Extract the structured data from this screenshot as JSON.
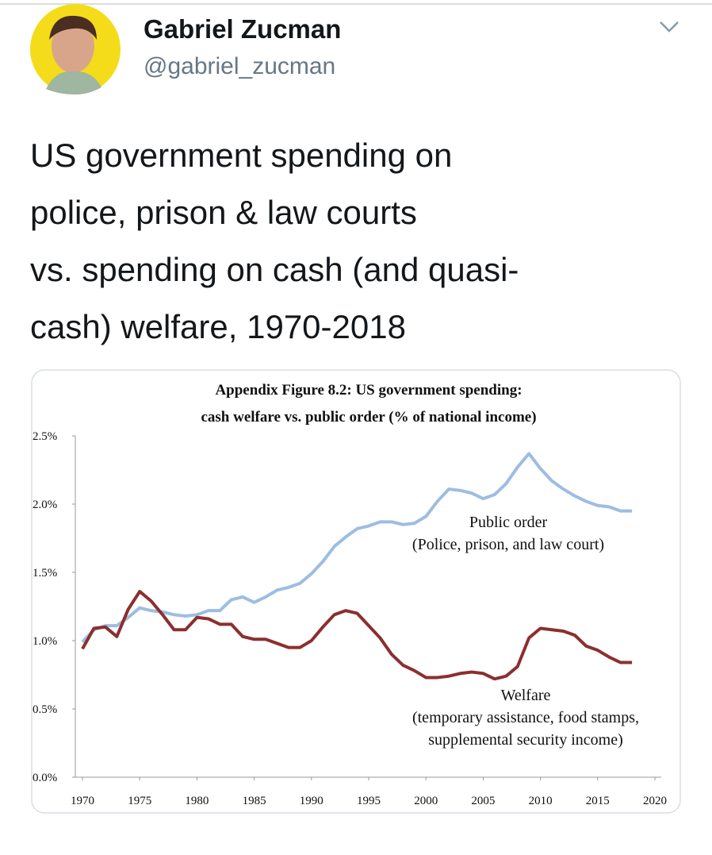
{
  "header": {
    "name": "Gabriel Zucman",
    "handle": "@gabriel_zucman"
  },
  "tweet": {
    "lines": [
      "US government spending on",
      "police, prison & law courts",
      "vs. spending on cash (and quasi-",
      "cash) welfare, 1970-2018"
    ]
  },
  "chart_data": {
    "type": "line",
    "title": [
      "Appendix Figure 8.2: US government spending:",
      "cash welfare vs. public order (% of national income)"
    ],
    "x": [
      1970,
      1971,
      1972,
      1973,
      1974,
      1975,
      1976,
      1977,
      1978,
      1979,
      1980,
      1981,
      1982,
      1983,
      1984,
      1985,
      1986,
      1987,
      1988,
      1989,
      1990,
      1991,
      1992,
      1993,
      1994,
      1995,
      1996,
      1997,
      1998,
      1999,
      2000,
      2001,
      2002,
      2003,
      2004,
      2005,
      2006,
      2007,
      2008,
      2009,
      2010,
      2011,
      2012,
      2013,
      2014,
      2015,
      2016,
      2017,
      2018
    ],
    "series": [
      {
        "name": "Public order",
        "color": "#9dbde2",
        "values": [
          0.99,
          1.08,
          1.11,
          1.11,
          1.17,
          1.24,
          1.22,
          1.21,
          1.19,
          1.18,
          1.19,
          1.22,
          1.22,
          1.3,
          1.32,
          1.28,
          1.32,
          1.37,
          1.39,
          1.42,
          1.49,
          1.58,
          1.69,
          1.76,
          1.82,
          1.84,
          1.87,
          1.87,
          1.85,
          1.86,
          1.91,
          2.02,
          2.11,
          2.1,
          2.08,
          2.04,
          2.07,
          2.15,
          2.27,
          2.37,
          2.26,
          2.17,
          2.11,
          2.06,
          2.02,
          1.99,
          1.98,
          1.95,
          1.95
        ]
      },
      {
        "name": "Welfare",
        "color": "#8c2f2f",
        "values": [
          0.94,
          1.09,
          1.1,
          1.03,
          1.23,
          1.36,
          1.29,
          1.19,
          1.08,
          1.08,
          1.17,
          1.16,
          1.12,
          1.12,
          1.03,
          1.01,
          1.01,
          0.98,
          0.95,
          0.95,
          1.0,
          1.1,
          1.19,
          1.22,
          1.2,
          1.11,
          1.02,
          0.9,
          0.82,
          0.78,
          0.73,
          0.73,
          0.74,
          0.76,
          0.77,
          0.76,
          0.72,
          0.74,
          0.81,
          1.02,
          1.09,
          1.08,
          1.07,
          1.04,
          0.96,
          0.93,
          0.88,
          0.84,
          0.84
        ]
      }
    ],
    "annotations": [
      {
        "series": 0,
        "lines": [
          "Public order",
          "(Police, prison, and law court)"
        ]
      },
      {
        "series": 1,
        "lines": [
          "Welfare",
          "(temporary assistance, food stamps,",
          "supplemental security income)"
        ]
      }
    ],
    "xlim": [
      1970,
      2020
    ],
    "xticks": [
      1970,
      1975,
      1980,
      1985,
      1990,
      1995,
      2000,
      2005,
      2010,
      2015,
      2020
    ],
    "ylim": [
      0,
      2.5
    ],
    "yticks": [
      {
        "value": 0,
        "label": "0.0%"
      },
      {
        "value": 0.5,
        "label": "0.5%"
      },
      {
        "value": 1,
        "label": "1.0%"
      },
      {
        "value": 1.5,
        "label": "1.5%"
      },
      {
        "value": 2,
        "label": "2.0%"
      },
      {
        "value": 2.5,
        "label": "2.5%"
      }
    ],
    "grid": false
  }
}
